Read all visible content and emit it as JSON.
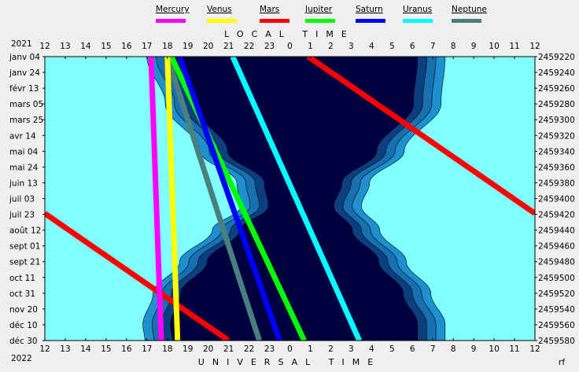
{
  "chart_data": {
    "type": "line",
    "title_top": "LOCAL TIME",
    "title_bottom": "UNIVERSAL TIME",
    "year_start": "2021",
    "year_end": "2022",
    "corner_mark": "rf",
    "hour_ticks_top": [
      "12",
      "13",
      "14",
      "15",
      "16",
      "17",
      "18",
      "19",
      "20",
      "21",
      "22",
      "23",
      "0",
      "1",
      "2",
      "3",
      "4",
      "5",
      "6",
      "7",
      "8",
      "9",
      "10",
      "11",
      "12"
    ],
    "hour_ticks_bottom": [
      "12",
      "13",
      "14",
      "15",
      "16",
      "17",
      "18",
      "19",
      "20",
      "21",
      "22",
      "23",
      "0",
      "1",
      "2",
      "3",
      "4",
      "5",
      "6",
      "7",
      "8",
      "9",
      "10",
      "11",
      "12"
    ],
    "date_labels": [
      "janv 04",
      "janv 24",
      "févr 13",
      "mars 05",
      "mars 25",
      "avr 14",
      "mai 04",
      "mai 24",
      "juin 13",
      "juil 03",
      "juil 23",
      "août 12",
      "sept 01",
      "sept 21",
      "oct 11",
      "oct 31",
      "nov 20",
      "déc 10",
      "déc 30"
    ],
    "jd_labels": [
      "2459220",
      "2459240",
      "2459260",
      "2459280",
      "2459300",
      "2459320",
      "2459340",
      "2459360",
      "2459380",
      "2459400",
      "2459420",
      "2459440",
      "2459460",
      "2459480",
      "2459500",
      "2459520",
      "2459540",
      "2459560",
      "2459580"
    ],
    "colors": {
      "day": "#80ffff",
      "night": "#000040",
      "civil": "#1e90d0",
      "nautical": "#1870b0",
      "astronomical": "#0c3f80",
      "frame": "#000000"
    },
    "series": [
      {
        "name": "Mercury",
        "color": "#ff00ff"
      },
      {
        "name": "Venus",
        "color": "#ffff00"
      },
      {
        "name": "Mars",
        "color": "#ff0000"
      },
      {
        "name": "Jupiter",
        "color": "#00ff00"
      },
      {
        "name": "Saturn",
        "color": "#0000ff"
      },
      {
        "name": "Uranus",
        "color": "#00ffff"
      },
      {
        "name": "Neptune",
        "color": "#4a7f80"
      }
    ],
    "night_boundaries": {
      "dates_index": [
        0,
        3,
        6,
        8,
        9.5,
        11,
        13,
        15,
        17,
        18
      ],
      "sunset_local_hour": [
        17.0,
        17.9,
        19.6,
        21.4,
        21.6,
        20.2,
        18.6,
        17.3,
        16.8,
        16.9
      ],
      "sunrise_local_hour": [
        7.6,
        7.4,
        5.6,
        3.9,
        3.5,
        4.4,
        5.7,
        6.9,
        7.6,
        7.6
      ]
    },
    "planet_tracks_hours_at_start_end": [
      {
        "name": "Uranus",
        "start": 21.2,
        "end": 3.4
      },
      {
        "name": "Neptune",
        "start": 18.0,
        "end": 22.5
      },
      {
        "name": "Jupiter",
        "start": 18.2,
        "end": 0.7
      },
      {
        "name": "Saturn",
        "start": 18.6,
        "end": 23.5
      },
      {
        "name": "Mars",
        "start": 0.9,
        "end": 21.0
      },
      {
        "name": "Venus",
        "start": 18.0,
        "end": 18.5
      },
      {
        "name": "Mercury",
        "start": 17.2,
        "end": 17.7
      }
    ]
  }
}
